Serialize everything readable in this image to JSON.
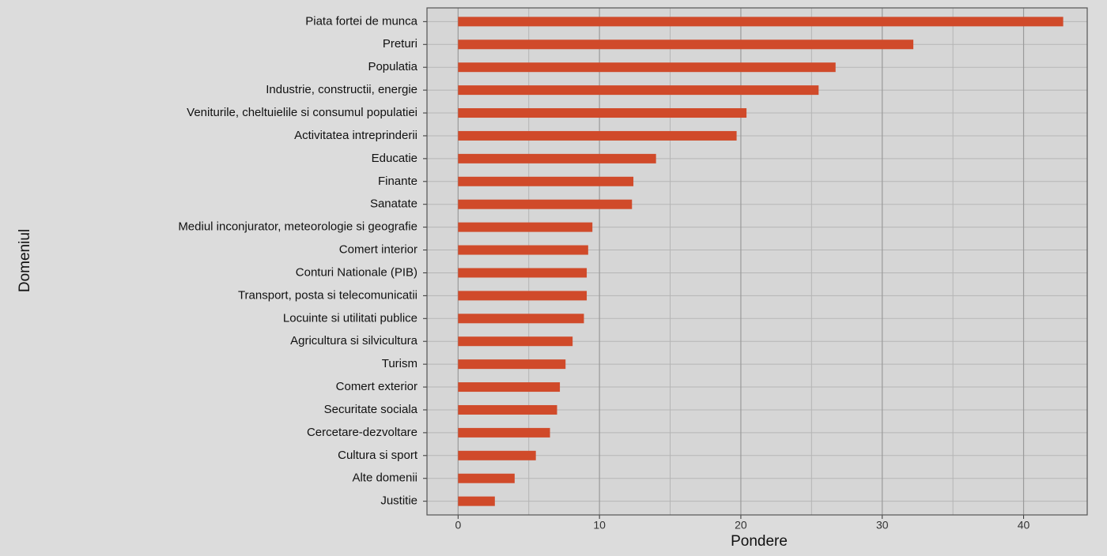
{
  "chart_data": {
    "type": "bar",
    "orientation": "horizontal",
    "x_label": "Pondere",
    "y_label": "Domeniul",
    "categories": [
      "Piata fortei de munca",
      "Preturi",
      "Populatia",
      "Industrie, constructii, energie",
      "Veniturile, cheltuielile si consumul populatiei",
      "Activitatea intreprinderii",
      "Educatie",
      "Finante",
      "Sanatate",
      "Mediul inconjurator, meteorologie si geografie",
      "Comert interior",
      "Conturi Nationale (PIB)",
      "Transport, posta si telecomunicatii",
      "Locuinte si utilitati publice",
      "Agricultura si silvicultura",
      "Turism",
      "Comert exterior",
      "Securitate sociala",
      "Cercetare-dezvoltare",
      "Cultura si sport",
      "Alte domenii",
      "Justitie"
    ],
    "values": [
      42.8,
      32.2,
      26.7,
      25.5,
      20.4,
      19.7,
      14.0,
      12.4,
      12.3,
      9.5,
      9.2,
      9.1,
      9.1,
      8.9,
      8.1,
      7.6,
      7.2,
      7.0,
      6.5,
      5.5,
      4.0,
      2.6
    ],
    "color": "#d04a2a",
    "xlim": [
      -2.2,
      44.5
    ],
    "xticks": [
      0,
      10,
      20,
      30,
      40
    ],
    "x_minor_grid": [
      5,
      15,
      25,
      35
    ],
    "grid": true
  }
}
